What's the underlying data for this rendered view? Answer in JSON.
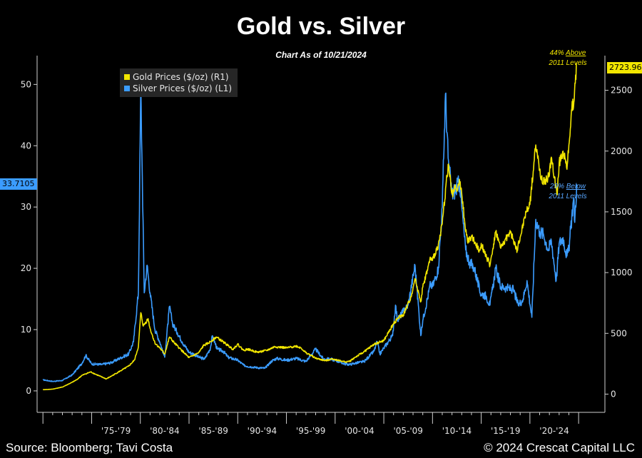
{
  "header": {
    "title": "Gold vs. Silver",
    "subtitle": "Chart As of 10/21/2024"
  },
  "annotations": {
    "gold_pct": "44% ",
    "gold_word": "Above",
    "gold_tail": "2011 Levels",
    "silver_pct": "29% ",
    "silver_word": "Below",
    "silver_tail": "2011 Levels"
  },
  "last_values": {
    "gold_label": "2723.96",
    "silver_label": "33.7105"
  },
  "footer": {
    "source": "Source: Bloomberg; Tavi Costa",
    "copyright": "© 2024 Crescat Capital LLC"
  },
  "colors": {
    "gold": "#f2e600",
    "silver": "#3b9cff",
    "axis": "#cfcfcf"
  },
  "chart_data": {
    "type": "line",
    "title": "Gold vs. Silver",
    "x_tick_labels": [
      "'75-'79",
      "'80-'84",
      "'85-'89",
      "'90-'94",
      "'95-'99",
      "'00-'04",
      "'05-'09",
      "'10-'14",
      "'15-'19",
      "'20-'24"
    ],
    "xlim": [
      1970,
      2025
    ],
    "y_left": {
      "label": "",
      "ticks": [
        0,
        10,
        20,
        30,
        40,
        50
      ],
      "ylim": [
        -3.5,
        54
      ]
    },
    "y_right": {
      "label": "",
      "ticks": [
        0,
        500,
        1000,
        1500,
        2000,
        2500
      ],
      "ylim": [
        -150,
        2750
      ]
    },
    "legend": {
      "placement": "top-left"
    },
    "series": [
      {
        "name": "Gold Prices ($/oz) (R1)",
        "axis": "right",
        "points": [
          [
            1970.0,
            36
          ],
          [
            1971.0,
            41
          ],
          [
            1972.0,
            58
          ],
          [
            1973.0,
            97
          ],
          [
            1973.5,
            120
          ],
          [
            1974.0,
            154
          ],
          [
            1974.9,
            183
          ],
          [
            1975.5,
            160
          ],
          [
            1976.5,
            125
          ],
          [
            1977.0,
            147
          ],
          [
            1978.0,
            193
          ],
          [
            1978.8,
            230
          ],
          [
            1979.4,
            280
          ],
          [
            1979.8,
            390
          ],
          [
            1980.05,
            670
          ],
          [
            1980.3,
            560
          ],
          [
            1980.8,
            620
          ],
          [
            1981.0,
            540
          ],
          [
            1981.5,
            420
          ],
          [
            1982.0,
            380
          ],
          [
            1982.5,
            330
          ],
          [
            1983.0,
            470
          ],
          [
            1983.5,
            420
          ],
          [
            1984.0,
            380
          ],
          [
            1984.5,
            340
          ],
          [
            1985.0,
            300
          ],
          [
            1985.5,
            320
          ],
          [
            1986.0,
            340
          ],
          [
            1986.5,
            400
          ],
          [
            1987.0,
            420
          ],
          [
            1987.8,
            470
          ],
          [
            1988.5,
            430
          ],
          [
            1989.0,
            400
          ],
          [
            1989.5,
            370
          ],
          [
            1990.0,
            410
          ],
          [
            1990.6,
            360
          ],
          [
            1991.0,
            370
          ],
          [
            1992.0,
            345
          ],
          [
            1993.0,
            360
          ],
          [
            1993.8,
            390
          ],
          [
            1994.5,
            385
          ],
          [
            1995.0,
            380
          ],
          [
            1996.0,
            395
          ],
          [
            1996.5,
            380
          ],
          [
            1997.0,
            340
          ],
          [
            1997.5,
            320
          ],
          [
            1998.0,
            295
          ],
          [
            1999.0,
            275
          ],
          [
            1999.7,
            290
          ],
          [
            2000.0,
            285
          ],
          [
            2001.0,
            265
          ],
          [
            2001.5,
            270
          ],
          [
            2002.0,
            300
          ],
          [
            2003.0,
            350
          ],
          [
            2004.0,
            410
          ],
          [
            2005.0,
            440
          ],
          [
            2006.0,
            580
          ],
          [
            2006.5,
            630
          ],
          [
            2007.0,
            650
          ],
          [
            2007.8,
            800
          ],
          [
            2008.2,
            950
          ],
          [
            2008.8,
            760
          ],
          [
            2009.0,
            880
          ],
          [
            2009.8,
            1120
          ],
          [
            2010.0,
            1100
          ],
          [
            2010.6,
            1230
          ],
          [
            2011.0,
            1400
          ],
          [
            2011.6,
            1890
          ],
          [
            2012.0,
            1650
          ],
          [
            2012.8,
            1740
          ],
          [
            2013.0,
            1650
          ],
          [
            2013.3,
            1420
          ],
          [
            2013.6,
            1250
          ],
          [
            2014.0,
            1300
          ],
          [
            2014.8,
            1180
          ],
          [
            2015.0,
            1240
          ],
          [
            2015.9,
            1060
          ],
          [
            2016.5,
            1340
          ],
          [
            2017.0,
            1200
          ],
          [
            2017.7,
            1300
          ],
          [
            2018.0,
            1330
          ],
          [
            2018.7,
            1180
          ],
          [
            2019.0,
            1290
          ],
          [
            2019.6,
            1500
          ],
          [
            2020.0,
            1560
          ],
          [
            2020.6,
            2050
          ],
          [
            2021.0,
            1850
          ],
          [
            2021.3,
            1730
          ],
          [
            2022.0,
            1800
          ],
          [
            2022.2,
            1950
          ],
          [
            2022.8,
            1640
          ],
          [
            2023.0,
            1900
          ],
          [
            2023.4,
            2000
          ],
          [
            2023.8,
            1850
          ],
          [
            2024.0,
            2050
          ],
          [
            2024.3,
            2350
          ],
          [
            2024.55,
            2420
          ],
          [
            2024.8,
            2723.96
          ]
        ]
      },
      {
        "name": "Silver Prices ($/oz) (L1)",
        "axis": "left",
        "points": [
          [
            1970.0,
            1.8
          ],
          [
            1971.0,
            1.55
          ],
          [
            1972.0,
            1.7
          ],
          [
            1973.0,
            2.6
          ],
          [
            1974.0,
            4.5
          ],
          [
            1974.4,
            5.8
          ],
          [
            1975.0,
            4.4
          ],
          [
            1976.0,
            4.3
          ],
          [
            1977.0,
            4.6
          ],
          [
            1978.0,
            5.4
          ],
          [
            1978.8,
            6.0
          ],
          [
            1979.3,
            8.0
          ],
          [
            1979.8,
            16.0
          ],
          [
            1980.05,
            49.5
          ],
          [
            1980.2,
            35.0
          ],
          [
            1980.4,
            16.0
          ],
          [
            1980.7,
            20.5
          ],
          [
            1981.0,
            16.0
          ],
          [
            1981.5,
            10.0
          ],
          [
            1982.0,
            8.0
          ],
          [
            1982.5,
            5.5
          ],
          [
            1983.0,
            13.8
          ],
          [
            1983.3,
            11.0
          ],
          [
            1983.8,
            9.5
          ],
          [
            1984.3,
            8.0
          ],
          [
            1985.0,
            6.3
          ],
          [
            1985.5,
            6.0
          ],
          [
            1986.0,
            5.5
          ],
          [
            1986.6,
            5.2
          ],
          [
            1987.2,
            7.0
          ],
          [
            1987.4,
            9.0
          ],
          [
            1987.9,
            6.8
          ],
          [
            1988.5,
            6.5
          ],
          [
            1989.0,
            5.5
          ],
          [
            1990.0,
            5.0
          ],
          [
            1990.6,
            4.2
          ],
          [
            1991.0,
            4.0
          ],
          [
            1992.0,
            3.8
          ],
          [
            1992.8,
            3.7
          ],
          [
            1993.5,
            4.9
          ],
          [
            1994.0,
            5.3
          ],
          [
            1995.0,
            5.0
          ],
          [
            1996.0,
            5.3
          ],
          [
            1997.0,
            4.8
          ],
          [
            1998.0,
            6.8
          ],
          [
            1998.8,
            5.2
          ],
          [
            1999.5,
            5.2
          ],
          [
            2000.0,
            5.0
          ],
          [
            2001.0,
            4.4
          ],
          [
            2001.5,
            4.3
          ],
          [
            2002.0,
            4.5
          ],
          [
            2003.0,
            4.8
          ],
          [
            2004.0,
            6.5
          ],
          [
            2004.3,
            8.0
          ],
          [
            2004.6,
            6.0
          ],
          [
            2005.0,
            7.0
          ],
          [
            2005.9,
            9.0
          ],
          [
            2006.2,
            14.0
          ],
          [
            2006.4,
            11.5
          ],
          [
            2007.0,
            13.0
          ],
          [
            2007.5,
            14.0
          ],
          [
            2008.2,
            20.5
          ],
          [
            2008.8,
            9.0
          ],
          [
            2009.0,
            11.5
          ],
          [
            2009.8,
            17.5
          ],
          [
            2010.0,
            17.0
          ],
          [
            2010.6,
            20.0
          ],
          [
            2011.0,
            30.0
          ],
          [
            2011.33,
            48.5
          ],
          [
            2011.6,
            38.0
          ],
          [
            2012.0,
            32.0
          ],
          [
            2012.8,
            34.0
          ],
          [
            2013.0,
            30.0
          ],
          [
            2013.4,
            23.0
          ],
          [
            2013.8,
            21.0
          ],
          [
            2014.3,
            20.0
          ],
          [
            2014.9,
            16.0
          ],
          [
            2015.5,
            15.5
          ],
          [
            2015.9,
            14.0
          ],
          [
            2016.5,
            20.0
          ],
          [
            2017.0,
            17.0
          ],
          [
            2017.6,
            16.8
          ],
          [
            2018.3,
            16.5
          ],
          [
            2018.8,
            14.0
          ],
          [
            2019.3,
            15.0
          ],
          [
            2019.7,
            18.0
          ],
          [
            2020.2,
            12.0
          ],
          [
            2020.6,
            28.0
          ],
          [
            2021.0,
            26.0
          ],
          [
            2021.4,
            25.5
          ],
          [
            2021.9,
            23.0
          ],
          [
            2022.2,
            24.5
          ],
          [
            2022.7,
            18.0
          ],
          [
            2023.0,
            24.0
          ],
          [
            2023.4,
            25.0
          ],
          [
            2023.8,
            22.0
          ],
          [
            2024.0,
            23.0
          ],
          [
            2024.3,
            28.5
          ],
          [
            2024.5,
            31.5
          ],
          [
            2024.6,
            27.5
          ],
          [
            2024.8,
            33.7105
          ]
        ]
      }
    ],
    "annotations": [
      "44% Above 2011 Levels",
      "29% Below 2011 Levels"
    ],
    "last_value_labels": {
      "gold": 2723.96,
      "silver": 33.7105
    }
  }
}
